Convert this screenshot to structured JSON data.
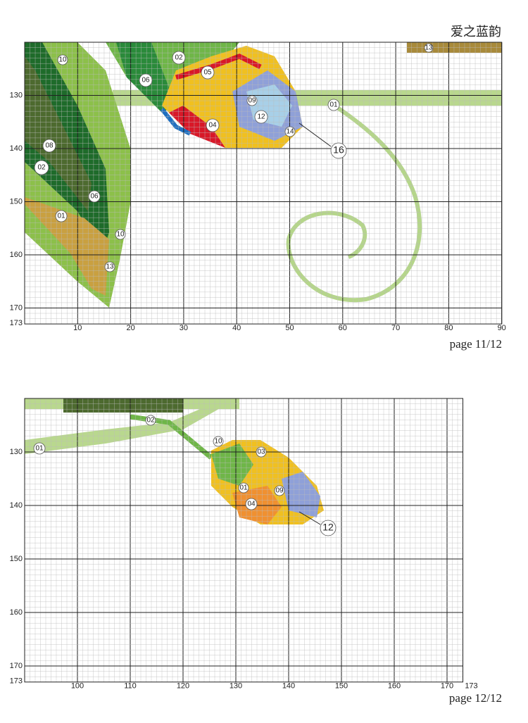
{
  "title": "爱之蓝韵",
  "panels": [
    {
      "page": "page 11/12",
      "row_labels": [
        "130",
        "140",
        "150",
        "160",
        "170",
        "173"
      ],
      "col_labels": [
        "10",
        "20",
        "30",
        "40",
        "50",
        "60",
        "70",
        "80",
        "90"
      ],
      "symbols": [
        "10",
        "02",
        "06",
        "05",
        "13",
        "09",
        "12",
        "04",
        "14",
        "01",
        "08",
        "02",
        "06",
        "01",
        "10",
        "13"
      ],
      "callout": "16"
    },
    {
      "page": "page 12/12",
      "row_labels": [
        "130",
        "140",
        "150",
        "160",
        "170",
        "173"
      ],
      "col_labels": [
        "100",
        "110",
        "120",
        "130",
        "140",
        "150",
        "160",
        "170",
        "173"
      ],
      "symbols": [
        "02",
        "01",
        "10",
        "03",
        "01",
        "09",
        "04"
      ],
      "callout": "12"
    }
  ]
}
